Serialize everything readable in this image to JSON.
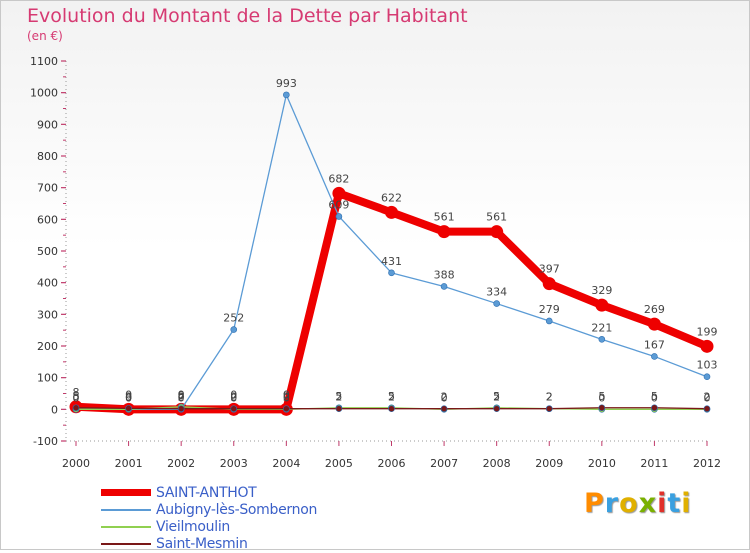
{
  "title": "Evolution du Montant de la Dette par Habitant",
  "unit": "(en €)",
  "logo": {
    "text": "Proxiti",
    "colors": [
      "#ff8c00",
      "#3aa0e0",
      "#e0b000",
      "#7ab000",
      "#e0302a",
      "#3aa0e0",
      "#e0b000"
    ]
  },
  "chart_data": {
    "type": "line",
    "title": "Evolution du Montant de la Dette par Habitant",
    "ylabel": "(en €)",
    "xlabel": "",
    "x": [
      2000,
      2001,
      2002,
      2003,
      2004,
      2005,
      2006,
      2007,
      2008,
      2009,
      2010,
      2011,
      2012
    ],
    "ylim": [
      -100,
      1100
    ],
    "yticks": [
      -100,
      0,
      100,
      200,
      300,
      400,
      500,
      600,
      700,
      800,
      900,
      1000,
      1100
    ],
    "grid": false,
    "legend": "bottom-left",
    "series": [
      {
        "name": "SAINT-ANTHOT",
        "color": "#ee0000",
        "width": "thick",
        "values": [
          8,
          0,
          0,
          0,
          0,
          682,
          622,
          561,
          561,
          397,
          329,
          269,
          199
        ],
        "labels": [
          "8",
          "0",
          "0",
          "0",
          "0",
          "682",
          "622",
          "561",
          "561",
          "397",
          "329",
          "269",
          "199"
        ]
      },
      {
        "name": "Aubigny-lès-Sombernon",
        "color": "#5b9bd5",
        "width": "thin",
        "values": [
          0,
          0,
          0,
          252,
          993,
          609,
          431,
          388,
          334,
          279,
          221,
          167,
          103
        ],
        "labels": [
          "0",
          "0",
          "0",
          "252",
          "993",
          "609",
          "431",
          "388",
          "334",
          "279",
          "221",
          "167",
          "103"
        ]
      },
      {
        "name": "Vieilmoulin",
        "color": "#90d050",
        "width": "thin",
        "values": [
          0,
          0,
          8,
          0,
          0,
          5,
          5,
          0,
          5,
          2,
          0,
          0,
          0
        ],
        "labels": [
          "0",
          "0",
          "8",
          "0",
          "0",
          "5",
          "5",
          "0",
          "5",
          "2",
          "0",
          "0",
          "0"
        ]
      },
      {
        "name": "Saint-Mesmin",
        "color": "#7a1818",
        "width": "thin",
        "values": [
          5,
          3,
          2,
          2,
          2,
          2,
          2,
          2,
          2,
          2,
          5,
          5,
          2
        ],
        "labels": [
          "5",
          "3",
          "2",
          "2",
          "2",
          "2",
          "2",
          "2",
          "2",
          "2",
          "5",
          "5",
          "2"
        ]
      }
    ]
  }
}
